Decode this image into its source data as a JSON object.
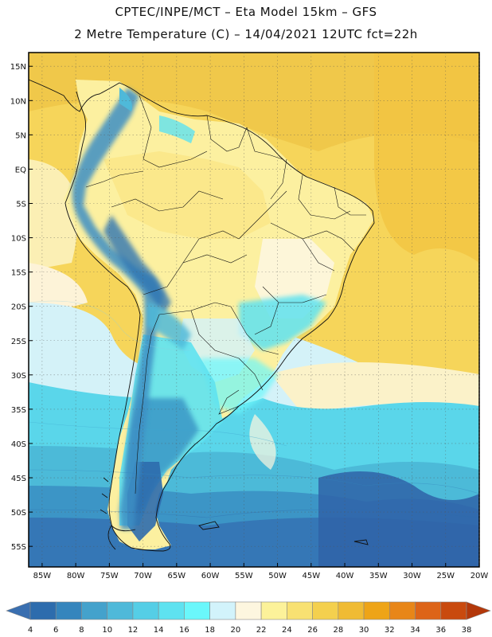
{
  "header": {
    "line1": "CPTEC/INPE/MCT –  Eta Model 15km – GFS",
    "line2": "2 Metre Temperature (C) – 14/04/2021 12UTC fct=22h"
  },
  "map": {
    "region": "South America",
    "lat_range": [
      -58,
      17
    ],
    "lon_range": [
      -87,
      -20
    ],
    "lat_ticks": [
      {
        "v": 15,
        "label": "15N"
      },
      {
        "v": 10,
        "label": "10N"
      },
      {
        "v": 5,
        "label": "5N"
      },
      {
        "v": 0,
        "label": "EQ"
      },
      {
        "v": -5,
        "label": "5S"
      },
      {
        "v": -10,
        "label": "10S"
      },
      {
        "v": -15,
        "label": "15S"
      },
      {
        "v": -20,
        "label": "20S"
      },
      {
        "v": -25,
        "label": "25S"
      },
      {
        "v": -30,
        "label": "30S"
      },
      {
        "v": -35,
        "label": "35S"
      },
      {
        "v": -40,
        "label": "40S"
      },
      {
        "v": -45,
        "label": "45S"
      },
      {
        "v": -50,
        "label": "50S"
      },
      {
        "v": -55,
        "label": "55S"
      }
    ],
    "lon_ticks": [
      {
        "v": -85,
        "label": "85W"
      },
      {
        "v": -80,
        "label": "80W"
      },
      {
        "v": -75,
        "label": "75W"
      },
      {
        "v": -70,
        "label": "70W"
      },
      {
        "v": -65,
        "label": "65W"
      },
      {
        "v": -60,
        "label": "60W"
      },
      {
        "v": -55,
        "label": "55W"
      },
      {
        "v": -50,
        "label": "50W"
      },
      {
        "v": -45,
        "label": "45W"
      },
      {
        "v": -40,
        "label": "40W"
      },
      {
        "v": -35,
        "label": "35W"
      },
      {
        "v": -30,
        "label": "30W"
      },
      {
        "v": -25,
        "label": "25W"
      },
      {
        "v": -20,
        "label": "20W"
      }
    ]
  },
  "colorbar": {
    "levels": [
      "4",
      "6",
      "8",
      "10",
      "12",
      "14",
      "16",
      "18",
      "20",
      "22",
      "24",
      "26",
      "28",
      "30",
      "32",
      "34",
      "36",
      "38"
    ],
    "colors": [
      "#3a6fb0",
      "#2d6cad",
      "#3585bd",
      "#44a2cc",
      "#4fb9d9",
      "#55cee6",
      "#5ee2f0",
      "#6af7fb",
      "#d2f3fb",
      "#fdf6df",
      "#fcf29a",
      "#f8e172",
      "#f4d04e",
      "#f0bb33",
      "#eea417",
      "#e88618",
      "#dd6418",
      "#c94a0e",
      "#b3380a"
    ]
  }
}
